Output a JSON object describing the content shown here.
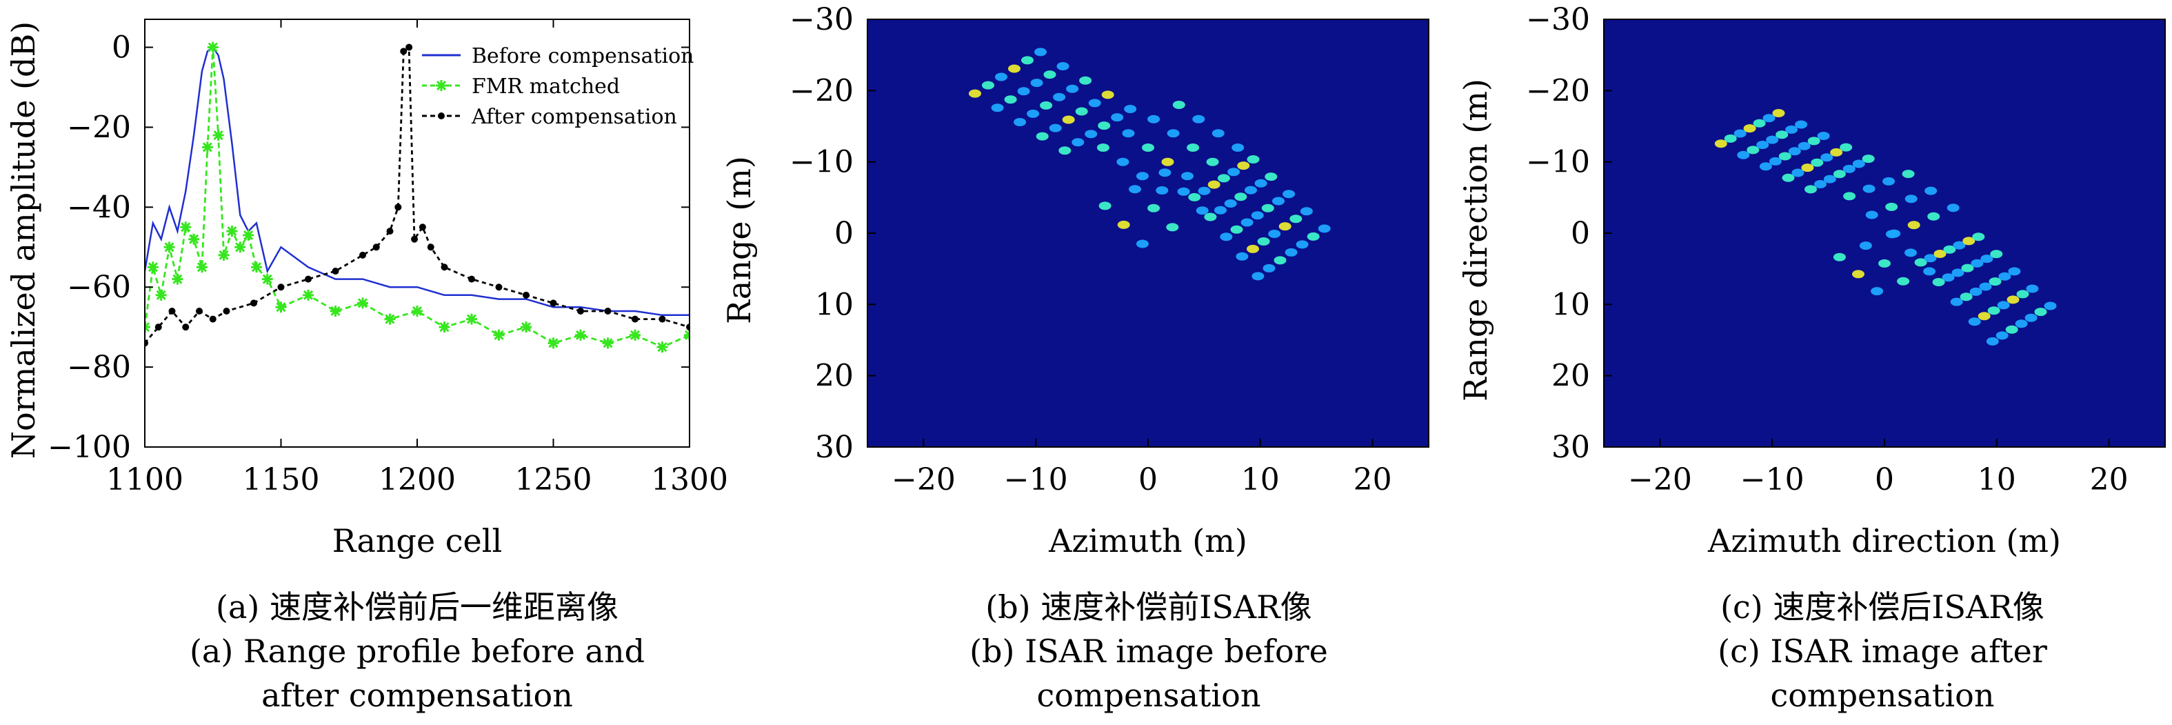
{
  "colors": {
    "before": "#1f2fd0",
    "fmr": "#36e61e",
    "after": "#000000",
    "isar_background": "#0a0f8a",
    "isar_scatter_low": "#1ea7ff",
    "isar_scatter_mid": "#3df2c8",
    "isar_scatter_high": "#e8e830"
  },
  "captions": {
    "a": {
      "line1": "(a) 速度补偿前后一维距离像",
      "line2": "(a) Range profile before and",
      "line3": "after compensation"
    },
    "b": {
      "line1": "(b) 速度补偿前ISAR像",
      "line2": "(b) ISAR image before",
      "line3": "compensation"
    },
    "c": {
      "line1": "(c) 速度补偿后ISAR像",
      "line2": "(c) ISAR image after",
      "line3": "compensation"
    }
  },
  "chart_data": [
    {
      "type": "line",
      "xlabel": "Range cell",
      "ylabel": "Normalized amplitude (dB)",
      "xlim": [
        1100,
        1300
      ],
      "ylim": [
        -100,
        7
      ],
      "xticks": [
        1100,
        1150,
        1200,
        1250,
        1300
      ],
      "yticks": [
        0,
        -20,
        -40,
        -60,
        -80,
        -100
      ],
      "grid": false,
      "legend_position": "top-right",
      "series": [
        {
          "name": "Before compensation",
          "style": "solid",
          "x": [
            1100,
            1103,
            1106,
            1109,
            1112,
            1115,
            1118,
            1121,
            1123,
            1125,
            1127,
            1129,
            1132,
            1135,
            1138,
            1141,
            1145,
            1150,
            1160,
            1170,
            1180,
            1190,
            1200,
            1210,
            1220,
            1230,
            1240,
            1250,
            1260,
            1270,
            1280,
            1290,
            1300
          ],
          "y": [
            -56,
            -44,
            -48,
            -40,
            -46,
            -36,
            -22,
            -6,
            -1,
            0,
            -2,
            -8,
            -24,
            -42,
            -46,
            -44,
            -56,
            -50,
            -55,
            -58,
            -58,
            -60,
            -60,
            -62,
            -62,
            -63,
            -63,
            -65,
            -65,
            -66,
            -66,
            -67,
            -67
          ]
        },
        {
          "name": "FMR matched",
          "style": "dash-star",
          "x": [
            1100,
            1103,
            1106,
            1109,
            1112,
            1115,
            1118,
            1121,
            1123,
            1125,
            1127,
            1129,
            1132,
            1135,
            1138,
            1141,
            1145,
            1150,
            1160,
            1170,
            1180,
            1190,
            1200,
            1210,
            1220,
            1230,
            1240,
            1250,
            1260,
            1270,
            1280,
            1290,
            1300
          ],
          "y": [
            -70,
            -55,
            -62,
            -50,
            -58,
            -45,
            -48,
            -55,
            -25,
            0,
            -22,
            -52,
            -46,
            -50,
            -47,
            -55,
            -58,
            -65,
            -62,
            -66,
            -64,
            -68,
            -66,
            -70,
            -68,
            -72,
            -70,
            -74,
            -72,
            -74,
            -72,
            -75,
            -72
          ]
        },
        {
          "name": "After compensation",
          "style": "dash-dot",
          "x": [
            1100,
            1105,
            1110,
            1115,
            1120,
            1125,
            1130,
            1140,
            1150,
            1160,
            1170,
            1180,
            1185,
            1190,
            1193,
            1195,
            1197,
            1199,
            1202,
            1205,
            1210,
            1220,
            1230,
            1240,
            1250,
            1260,
            1270,
            1280,
            1290,
            1300
          ],
          "y": [
            -74,
            -70,
            -66,
            -70,
            -66,
            -68,
            -66,
            -64,
            -60,
            -58,
            -56,
            -52,
            -50,
            -46,
            -40,
            -1,
            0,
            -48,
            -45,
            -50,
            -55,
            -58,
            -60,
            -62,
            -64,
            -66,
            -66,
            -68,
            -68,
            -70
          ]
        }
      ]
    },
    {
      "type": "heatmap",
      "xlabel": "Azimuth (m)",
      "ylabel": "Range (m)",
      "xlim": [
        -25,
        25
      ],
      "ylim": [
        -30,
        30
      ],
      "y_inverted": true,
      "xticks": [
        -20,
        -10,
        0,
        10,
        20
      ],
      "yticks": [
        -30,
        -20,
        -10,
        0,
        10,
        20,
        30
      ],
      "panels": [
        {
          "name": "left-panel",
          "corners": [
            [
              -17,
              -20
            ],
            [
              -10,
              -27
            ],
            [
              0,
              -17
            ],
            [
              -7,
              -10
            ]
          ],
          "rows": 5,
          "cols": 6
        },
        {
          "name": "central-body",
          "corners": [
            [
              -6,
              -12
            ],
            [
              3,
              -20
            ],
            [
              10,
              -12
            ],
            [
              1,
              -4
            ]
          ],
          "rows": 4,
          "cols": 4
        },
        {
          "name": "body-lower",
          "corners": [
            [
              -6,
              -4
            ],
            [
              2,
              -11
            ],
            [
              7,
              -3
            ],
            [
              -1,
              4
            ]
          ],
          "rows": 3,
          "cols": 3
        },
        {
          "name": "right-panel",
          "corners": [
            [
              3,
              -6
            ],
            [
              9,
              -12
            ],
            [
              17,
              0
            ],
            [
              10,
              8
            ]
          ],
          "rows": 5,
          "cols": 7
        }
      ]
    },
    {
      "type": "heatmap",
      "xlabel": "Azimuth direction (m)",
      "ylabel": "Range direction (m)",
      "xlim": [
        -25,
        25
      ],
      "ylim": [
        -30,
        30
      ],
      "y_inverted": true,
      "xticks": [
        -20,
        -10,
        0,
        10,
        20
      ],
      "yticks": [
        -30,
        -20,
        -10,
        0,
        10,
        20,
        30
      ],
      "panels": [
        {
          "name": "left-panel",
          "corners": [
            [
              -16,
              -13
            ],
            [
              -10,
              -18
            ],
            [
              0,
              -10
            ],
            [
              -6,
              -5
            ]
          ],
          "rows": 5,
          "cols": 7
        },
        {
          "name": "central-body",
          "corners": [
            [
              -5,
              -6
            ],
            [
              2,
              -10
            ],
            [
              8,
              -3
            ],
            [
              1,
              2
            ]
          ],
          "rows": 3,
          "cols": 4
        },
        {
          "name": "body-lower",
          "corners": [
            [
              -6,
              3
            ],
            [
              1,
              -2
            ],
            [
              6,
              6
            ],
            [
              -1,
              10
            ]
          ],
          "rows": 3,
          "cols": 3
        },
        {
          "name": "right-panel",
          "corners": [
            [
              2,
              3
            ],
            [
              8,
              -1
            ],
            [
              16,
              11
            ],
            [
              10,
              17
            ]
          ],
          "rows": 5,
          "cols": 7
        }
      ]
    }
  ]
}
